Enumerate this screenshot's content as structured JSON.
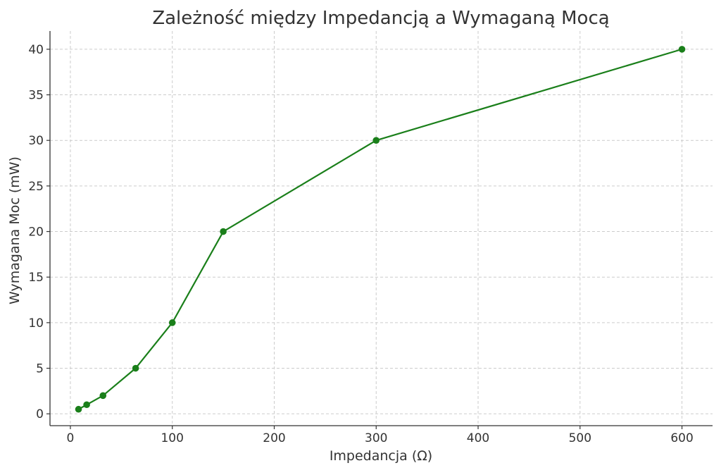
{
  "chart_data": {
    "type": "line",
    "title": "Zależność między Impedancją a Wymaganą Mocą",
    "xlabel": "Impedancja (Ω)",
    "ylabel": "Wymagana Moc (mW)",
    "xlim": [
      -20,
      630
    ],
    "ylim": [
      -1.3,
      42
    ],
    "xticks": [
      0,
      100,
      200,
      300,
      400,
      500,
      600
    ],
    "yticks": [
      0,
      5,
      10,
      15,
      20,
      25,
      30,
      35,
      40
    ],
    "grid": true,
    "grid_style": "dashed",
    "series": [
      {
        "color": "#1a7f1a",
        "marker": "circle",
        "points": [
          {
            "x": 8,
            "y": 0.5
          },
          {
            "x": 16,
            "y": 1
          },
          {
            "x": 32,
            "y": 2
          },
          {
            "x": 64,
            "y": 5
          },
          {
            "x": 100,
            "y": 10
          },
          {
            "x": 150,
            "y": 20
          },
          {
            "x": 300,
            "y": 30
          },
          {
            "x": 600,
            "y": 40
          }
        ]
      }
    ]
  }
}
